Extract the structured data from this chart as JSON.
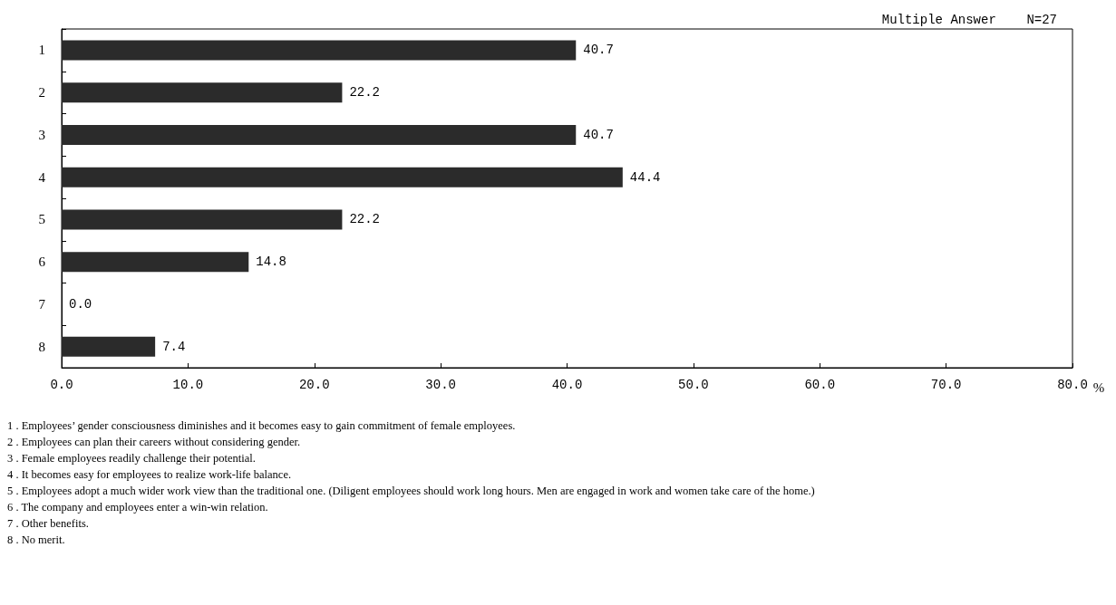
{
  "chart_data": {
    "type": "bar",
    "orientation": "horizontal",
    "subtitle": "Multiple Answer    N=27",
    "xlabel": "%",
    "categories": [
      "1",
      "2",
      "3",
      "4",
      "5",
      "6",
      "7",
      "8"
    ],
    "values": [
      40.7,
      22.2,
      40.7,
      44.4,
      22.2,
      14.8,
      0.0,
      7.4
    ],
    "value_labels": [
      "40.7",
      "22.2",
      "40.7",
      "44.4",
      "22.2",
      "14.8",
      "0.0",
      "7.4"
    ],
    "color": "#2b2b2b",
    "xlim": [
      0,
      80
    ],
    "xticks": [
      {
        "value": 0,
        "label": "0.0"
      },
      {
        "value": 10,
        "label": "10.0"
      },
      {
        "value": 20,
        "label": "20.0"
      },
      {
        "value": 30,
        "label": "30.0"
      },
      {
        "value": 40,
        "label": "40.0"
      },
      {
        "value": 50,
        "label": "50.0"
      },
      {
        "value": 60,
        "label": "60.0"
      },
      {
        "value": 70,
        "label": "70.0"
      },
      {
        "value": 80,
        "label": "80.0"
      }
    ],
    "grid": false,
    "annotations": [
      "1 . Employees’ gender consciousness diminishes and it becomes easy to gain commitment of female employees.",
      "2 . Employees can plan their careers without considering gender.",
      "3 . Female employees readily challenge their potential.",
      "4 . It becomes easy for employees to realize work-life balance.",
      "5 . Employees adopt a much wider work view than the traditional one. (Diligent employees should work long hours. Men are engaged in work and women take care of the home.)",
      "6 . The company and employees enter a win-win relation.",
      "7 . Other benefits.",
      "8 . No merit."
    ]
  }
}
